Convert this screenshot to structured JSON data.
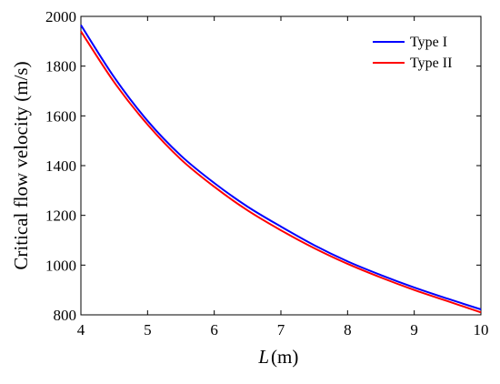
{
  "chart_data": {
    "type": "line",
    "xlabel": "L",
    "xlabel_unit": "(m)",
    "ylabel": "Critical flow velocity (m/s)",
    "xlim": [
      4,
      10
    ],
    "ylim": [
      800,
      2000
    ],
    "xticks": [
      4,
      5,
      6,
      7,
      8,
      9,
      10
    ],
    "yticks": [
      800,
      1000,
      1200,
      1400,
      1600,
      1800,
      2000
    ],
    "grid": false,
    "legend_position": "top-right",
    "series": [
      {
        "name": "Type I",
        "color": "#0000ff",
        "x": [
          4,
          4.5,
          5,
          5.5,
          6,
          6.5,
          7,
          7.5,
          8,
          8.5,
          9,
          9.5,
          10
        ],
        "y": [
          1965,
          1755,
          1580,
          1440,
          1330,
          1235,
          1155,
          1080,
          1015,
          960,
          910,
          865,
          822
        ]
      },
      {
        "name": "Type II",
        "color": "#ff0000",
        "x": [
          4,
          4.5,
          5,
          5.5,
          6,
          6.5,
          7,
          7.5,
          8,
          8.5,
          9,
          9.5,
          10
        ],
        "y": [
          1940,
          1735,
          1565,
          1425,
          1315,
          1220,
          1140,
          1068,
          1005,
          950,
          900,
          855,
          810
        ]
      }
    ]
  }
}
